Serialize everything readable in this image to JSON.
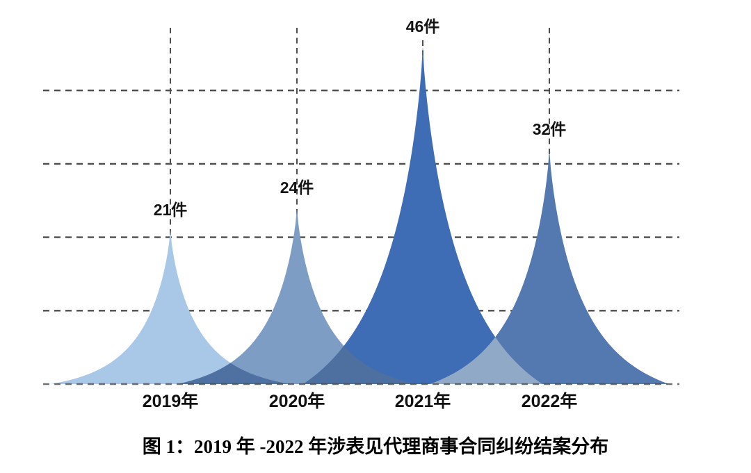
{
  "page": {
    "background_color": "#ffffff"
  },
  "caption": {
    "text": "图 1：2019 年 -2022 年涉表见代理商事合同纠纷结案分布"
  },
  "chart_data": {
    "type": "area",
    "title": "图 1：2019 年 -2022 年涉表见代理商事合同纠纷结案分布",
    "categories": [
      "2019年",
      "2020年",
      "2021年",
      "2022年"
    ],
    "values": [
      21,
      24,
      46,
      32
    ],
    "value_labels": [
      "21件",
      "24件",
      "46件",
      "32件"
    ],
    "unit_suffix": "件",
    "xlabel": "",
    "ylabel": "",
    "ylim": [
      0,
      50
    ],
    "gridline_values": [
      10,
      20,
      30,
      40
    ],
    "grid_style": "dashed",
    "legend": "none",
    "gridline_color": "#4d4d4d",
    "series_colors": [
      "#a9c7e7",
      "#7d9dc5",
      "#3e6cb5",
      "#5478b0"
    ],
    "overlap_colors": [
      "#4e71a2",
      "#4d70a0",
      "#8fa9c7"
    ],
    "label_color": "#141414"
  }
}
